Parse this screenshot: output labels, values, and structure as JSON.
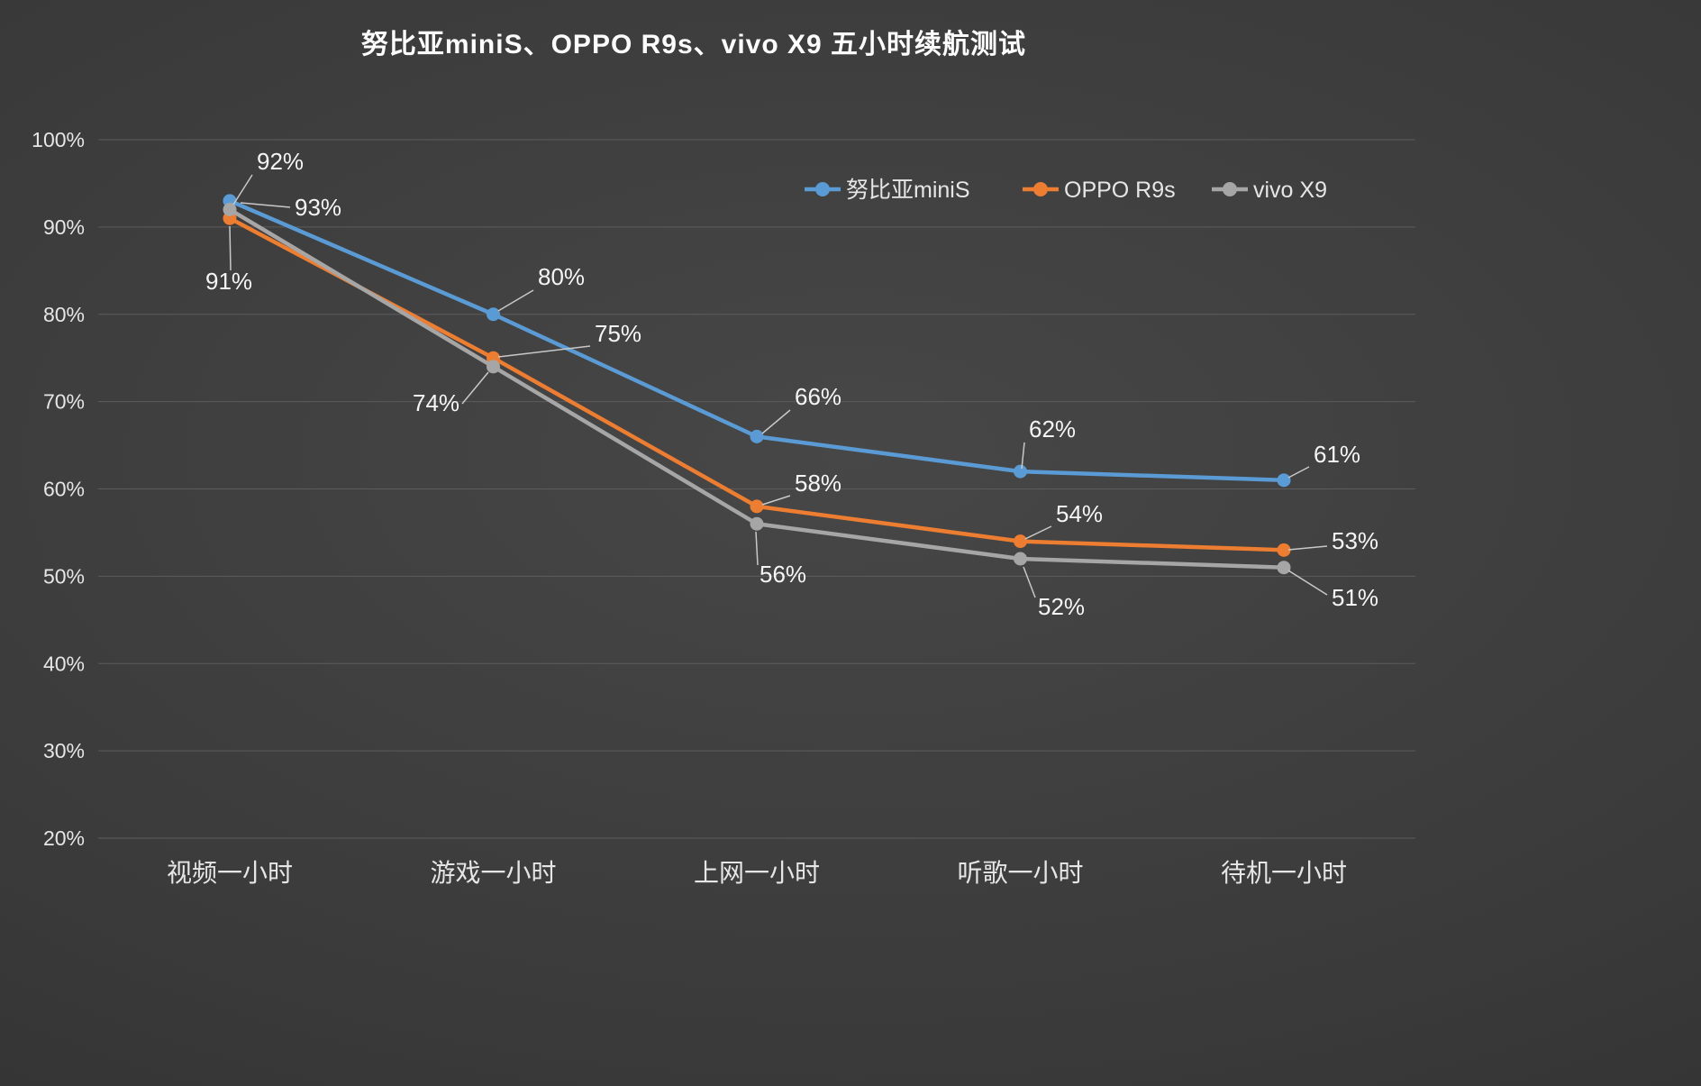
{
  "title": "努比亚miniS、OPPO R9s、vivo X9 五小时续航测试",
  "chart_data": {
    "type": "line",
    "title": "努比亚miniS、OPPO R9s、vivo X9 五小时续航测试",
    "categories": [
      "视频一小时",
      "游戏一小时",
      "上网一小时",
      "听歌一小时",
      "待机一小时"
    ],
    "series": [
      {
        "name": "努比亚miniS",
        "color": "#5B9BD5",
        "values": [
          93,
          80,
          66,
          62,
          61
        ]
      },
      {
        "name": "OPPO R9s",
        "color": "#ED7D31",
        "values": [
          91,
          75,
          58,
          54,
          53
        ]
      },
      {
        "name": "vivo X9",
        "color": "#A6A6A6",
        "values": [
          92,
          74,
          56,
          52,
          51
        ]
      }
    ],
    "xlabel": "",
    "ylabel": "",
    "ylim": [
      20,
      100
    ],
    "ytick_step": 10,
    "ytick_suffix": "%",
    "data_label_suffix": "%",
    "grid": true,
    "legend_position": "top-right"
  },
  "colors": {
    "background_center": "#474747",
    "background_edge": "#2c2c2c",
    "gridline": "#5c5c5c",
    "axis_text": "#e6e6e6",
    "title_text": "#ffffff",
    "data_label_text": "#f5f5f5",
    "leader_line": "#c8c8c8"
  }
}
